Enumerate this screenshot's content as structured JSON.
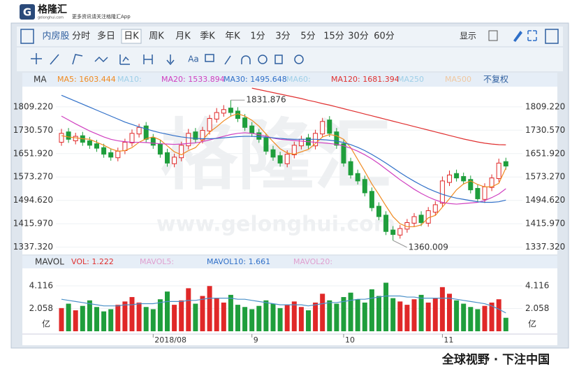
{
  "header": {
    "logo": "格隆汇",
    "site": "gelonghui.com",
    "tagline": "更多资讯请关注格隆汇App"
  },
  "tabs": [
    "内房股",
    "分时",
    "多日",
    "日K",
    "周K",
    "月K",
    "季K",
    "年K",
    "1分",
    "3分",
    "5分",
    "15分",
    "30分",
    "60分"
  ],
  "tools": {
    "display": "显示",
    "text": "Aa"
  },
  "chart_data": {
    "type": "candlestick",
    "ma_label": "MA",
    "adjust": "不复权",
    "ma_legend": [
      {
        "text": "MA5: 1603.444",
        "color": "#f08a20"
      },
      {
        "text": "MA10:",
        "color": "#9ecfe8"
      },
      {
        "text": "MA20: 1533.894",
        "color": "#d040c0"
      },
      {
        "text": "MA30: 1495.648",
        "color": "#2f6fc8"
      },
      {
        "text": "MA60:",
        "color": "#9ecfe8"
      },
      {
        "text": "MA120: 1681.394",
        "color": "#e03030"
      },
      {
        "text": "MA250",
        "color": "#9ecfe8"
      },
      {
        "text": "MA500",
        "color": "#f0c8a0"
      }
    ],
    "vol_label": "MAVOL",
    "vol_legend": [
      {
        "text": "VOL: 1.222",
        "color": "#e03030"
      },
      {
        "text": "MAVOL5:",
        "color": "#e0a0d0"
      },
      {
        "text": "MAVOL10: 1.661",
        "color": "#2f6fc8"
      },
      {
        "text": "MAVOL20:",
        "color": "#e0a0d0"
      }
    ],
    "ylim": [
      1313,
      1877
    ],
    "yticks": [
      {
        "value": 1809.22,
        "label": "1809.220"
      },
      {
        "value": 1730.57,
        "label": "1730.570"
      },
      {
        "value": 1651.92,
        "label": "1651.920"
      },
      {
        "value": 1573.27,
        "label": "1573.270"
      },
      {
        "value": 1494.62,
        "label": "1494.620"
      },
      {
        "value": 1415.97,
        "label": "1415.970"
      },
      {
        "value": 1337.32,
        "label": "1337.320"
      }
    ],
    "vol_ylim": [
      0,
      5.7
    ],
    "vol_yticks": [
      4.116,
      2.058
    ],
    "vol_unit": "亿",
    "x_labels": [
      {
        "index": 13,
        "label": "2018/08"
      },
      {
        "index": 27,
        "label": "9"
      },
      {
        "index": 40,
        "label": "10"
      },
      {
        "index": 54,
        "label": "11"
      }
    ],
    "up_color": "#e02828",
    "down_color": "#1f9e3c",
    "candles": {
      "open": [
        1690,
        1725,
        1695,
        1712,
        1695,
        1685,
        1672,
        1655,
        1638,
        1662,
        1688,
        1718,
        1745,
        1705,
        1685,
        1655,
        1618,
        1638,
        1678,
        1725,
        1698,
        1728,
        1768,
        1788,
        1805,
        1795,
        1772,
        1745,
        1722,
        1705,
        1665,
        1645,
        1618,
        1648,
        1678,
        1705,
        1678,
        1718,
        1765,
        1725,
        1685,
        1625,
        1585,
        1565,
        1525,
        1475,
        1445,
        1395,
        1378,
        1398,
        1418,
        1445,
        1418,
        1455,
        1485,
        1555,
        1585,
        1575,
        1565,
        1535,
        1498,
        1538,
        1568,
        1625
      ],
      "high": [
        1735,
        1738,
        1722,
        1725,
        1708,
        1698,
        1685,
        1668,
        1672,
        1702,
        1733,
        1752,
        1758,
        1718,
        1697,
        1668,
        1652,
        1692,
        1735,
        1738,
        1742,
        1782,
        1805,
        1815,
        1831.876,
        1808,
        1785,
        1758,
        1735,
        1718,
        1678,
        1658,
        1663,
        1692,
        1712,
        1718,
        1732,
        1772,
        1778,
        1738,
        1698,
        1638,
        1598,
        1578,
        1538,
        1488,
        1458,
        1408,
        1412,
        1432,
        1452,
        1458,
        1472,
        1492,
        1575,
        1595,
        1598,
        1588,
        1578,
        1548,
        1552,
        1582,
        1635,
        1638
      ],
      "low": [
        1678,
        1688,
        1683,
        1678,
        1668,
        1658,
        1638,
        1628,
        1626,
        1650,
        1676,
        1706,
        1688,
        1668,
        1638,
        1608,
        1606,
        1626,
        1666,
        1688,
        1686,
        1716,
        1756,
        1776,
        1778,
        1758,
        1728,
        1708,
        1688,
        1648,
        1628,
        1608,
        1606,
        1636,
        1666,
        1668,
        1666,
        1706,
        1708,
        1668,
        1608,
        1568,
        1548,
        1508,
        1458,
        1428,
        1378,
        1360.009,
        1366,
        1386,
        1406,
        1408,
        1406,
        1443,
        1473,
        1543,
        1558,
        1548,
        1518,
        1488,
        1486,
        1526,
        1556,
        1598
      ],
      "close": [
        1720,
        1700,
        1710,
        1690,
        1680,
        1670,
        1650,
        1640,
        1660,
        1690,
        1720,
        1740,
        1700,
        1680,
        1650,
        1620,
        1640,
        1680,
        1720,
        1700,
        1730,
        1770,
        1790,
        1800,
        1790,
        1770,
        1740,
        1720,
        1700,
        1660,
        1640,
        1620,
        1650,
        1680,
        1700,
        1680,
        1720,
        1760,
        1720,
        1680,
        1620,
        1580,
        1560,
        1520,
        1470,
        1440,
        1390,
        1380,
        1400,
        1420,
        1440,
        1420,
        1460,
        1480,
        1560,
        1580,
        1570,
        1560,
        1530,
        1500,
        1540,
        1570,
        1620,
        1610
      ]
    },
    "volume": [
      2.1,
      2.5,
      1.9,
      2.3,
      2.8,
      2.2,
      1.8,
      2.0,
      2.4,
      2.7,
      3.1,
      2.6,
      2.2,
      2.0,
      2.9,
      3.6,
      2.4,
      2.8,
      3.9,
      2.5,
      3.2,
      4.1,
      3.0,
      2.6,
      3.3,
      2.4,
      2.2,
      2.0,
      2.3,
      2.8,
      2.5,
      2.1,
      2.4,
      2.7,
      2.2,
      1.9,
      2.6,
      3.4,
      2.8,
      2.5,
      3.1,
      3.5,
      2.9,
      2.6,
      3.8,
      3.2,
      4.4,
      3.0,
      2.7,
      2.4,
      2.9,
      3.3,
      2.6,
      3.0,
      4.0,
      3.4,
      2.8,
      2.5,
      2.2,
      2.0,
      2.3,
      2.6,
      2.9,
      1.222
    ],
    "ma": [
      {
        "color": "#f08a20",
        "values": [
          1712,
          1708,
          1705,
          1702,
          1700,
          1690,
          1680,
          1668,
          1660,
          1662,
          1672,
          1690,
          1702,
          1708,
          1698,
          1678,
          1658,
          1648,
          1662,
          1672,
          1698,
          1724,
          1742,
          1762,
          1778,
          1786,
          1778,
          1764,
          1744,
          1718,
          1692,
          1668,
          1654,
          1650,
          1658,
          1666,
          1686,
          1708,
          1716,
          1712,
          1700,
          1672,
          1632,
          1592,
          1550,
          1514,
          1476,
          1440,
          1416,
          1406,
          1406,
          1412,
          1436,
          1444,
          1472,
          1500,
          1530,
          1550,
          1560,
          1548,
          1540,
          1540,
          1552,
          1603.444
        ]
      },
      {
        "color": "#d040c0",
        "values": [
          1778,
          1765,
          1752,
          1740,
          1728,
          1718,
          1708,
          1700,
          1695,
          1692,
          1690,
          1690,
          1689,
          1687,
          1685,
          1684,
          1683,
          1684,
          1686,
          1688,
          1692,
          1698,
          1704,
          1710,
          1716,
          1720,
          1722,
          1720,
          1716,
          1710,
          1704,
          1700,
          1698,
          1696,
          1694,
          1692,
          1690,
          1688,
          1686,
          1683,
          1678,
          1670,
          1660,
          1648,
          1634,
          1618,
          1600,
          1582,
          1564,
          1548,
          1532,
          1518,
          1506,
          1496,
          1488,
          1484,
          1482,
          1484,
          1486,
          1488,
          1494,
          1504,
          1516,
          1533.894
        ]
      },
      {
        "color": "#2f6fc8",
        "values": [
          1848,
          1838,
          1828,
          1818,
          1808,
          1798,
          1788,
          1778,
          1768,
          1758,
          1750,
          1742,
          1735,
          1728,
          1722,
          1717,
          1712,
          1708,
          1705,
          1703,
          1702,
          1702,
          1703,
          1705,
          1707,
          1709,
          1710,
          1710,
          1709,
          1707,
          1705,
          1703,
          1701,
          1700,
          1700,
          1700,
          1700,
          1699,
          1697,
          1694,
          1689,
          1682,
          1673,
          1662,
          1649,
          1635,
          1620,
          1604,
          1588,
          1573,
          1559,
          1546,
          1534,
          1524,
          1515,
          1508,
          1502,
          1498,
          1494,
          1490,
          1488,
          1488,
          1490,
          1495.648
        ]
      },
      {
        "color": "#e03030",
        "values": [
          null,
          null,
          null,
          null,
          null,
          null,
          null,
          null,
          null,
          null,
          null,
          null,
          null,
          null,
          null,
          null,
          null,
          null,
          null,
          null,
          null,
          null,
          null,
          null,
          null,
          null,
          null,
          1872,
          1867,
          1862,
          1857,
          1852,
          1847,
          1842,
          1837,
          1831,
          1826,
          1820,
          1815,
          1809,
          1803,
          1797,
          1791,
          1785,
          1779,
          1773,
          1767,
          1761,
          1755,
          1749,
          1743,
          1737,
          1731,
          1725,
          1719,
          1713,
          1707,
          1701,
          1696,
          1691,
          1687,
          1684,
          1682,
          1681.394
        ]
      }
    ],
    "mavol10": {
      "color": "#4a90c8",
      "values": [
        2.9,
        2.8,
        2.7,
        2.6,
        2.5,
        2.4,
        2.3,
        2.3,
        2.3,
        2.4,
        2.4,
        2.5,
        2.5,
        2.5,
        2.6,
        2.7,
        2.7,
        2.7,
        2.8,
        2.8,
        2.9,
        3.0,
        3.0,
        3.0,
        3.0,
        2.9,
        2.9,
        2.8,
        2.7,
        2.6,
        2.5,
        2.4,
        2.4,
        2.4,
        2.4,
        2.3,
        2.4,
        2.5,
        2.6,
        2.6,
        2.7,
        2.8,
        2.9,
        2.9,
        3.0,
        3.1,
        3.2,
        3.2,
        3.2,
        3.1,
        3.1,
        3.0,
        3.0,
        3.0,
        3.0,
        3.0,
        2.9,
        2.8,
        2.7,
        2.6,
        2.5,
        2.3,
        2.0,
        1.661
      ]
    },
    "annotations": [
      {
        "index": 24,
        "field": "high",
        "text": "1831.876"
      },
      {
        "index": 47,
        "field": "low",
        "text": "1360.009"
      }
    ]
  },
  "watermark": {
    "logo": "格隆汇",
    "url": "www.gelonghui.com"
  },
  "footer": "全球视野 · 下注中国"
}
